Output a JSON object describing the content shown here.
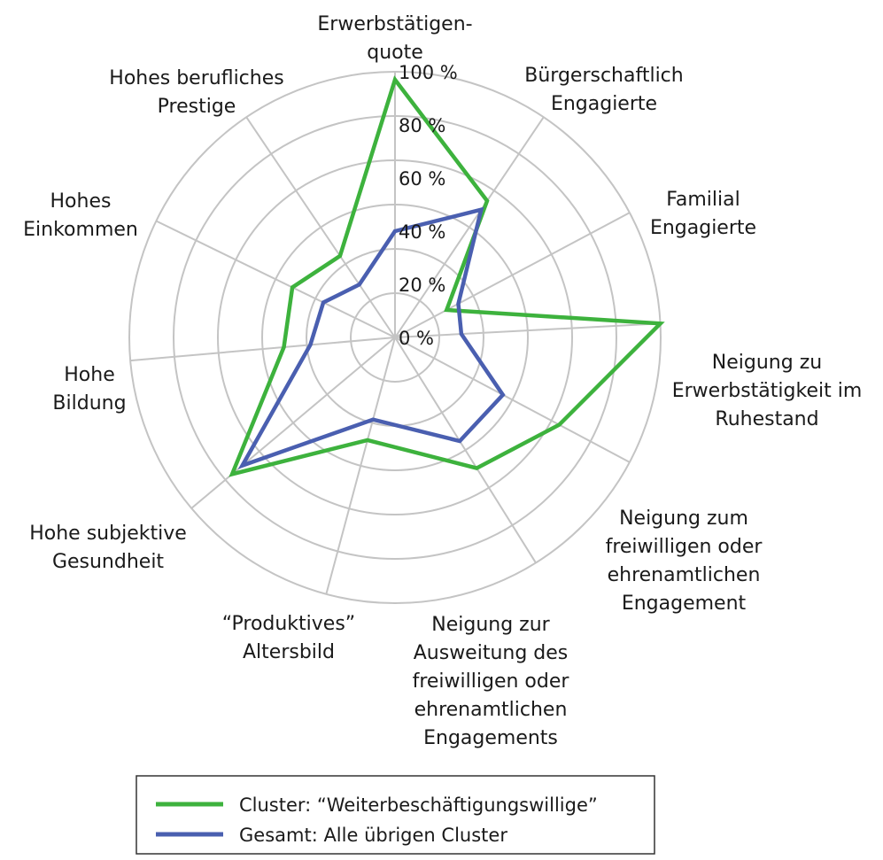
{
  "chart_data": {
    "type": "radar",
    "axes": [
      "Erwerbstätigen-\nquote",
      "Bürgerschaftlich\nEngagierte",
      "Familial\nEngagierte",
      "Neigung zu\nErwerbstätigkeit im\nRuhestand",
      "Neigung zum\nfreiwilligen oder\nehrenamtlichen\nEngagement",
      "Neigung zur\nAusweitung des\nfreiwilligen oder\nehrenamtlichen\nEngagements",
      "“Produktives”\nAltersbild",
      "Hohe subjektive\nGesundheit",
      "Hohe\nBildung",
      "Hohes\nEinkommen",
      "Hohes berufliches\nPrestige"
    ],
    "ticks": [
      "0 %",
      "20 %",
      "40 %",
      "60 %",
      "80 %",
      "100 %"
    ],
    "tick_values": [
      0,
      20,
      40,
      60,
      80,
      100
    ],
    "rmax": 100,
    "series": [
      {
        "name": "Cluster: “Weiterbeschäftigungswillige”",
        "color": "#3db23d",
        "values": [
          97,
          62,
          22,
          100,
          70,
          58,
          40,
          80,
          42,
          43,
          37
        ]
      },
      {
        "name": "Gesamt: Alle übrigen Cluster",
        "color": "#4a5fb0",
        "values": [
          40,
          58,
          27,
          25,
          46,
          46,
          32,
          75,
          32,
          30,
          24
        ]
      }
    ],
    "legend_position": "bottom",
    "grid": true
  }
}
